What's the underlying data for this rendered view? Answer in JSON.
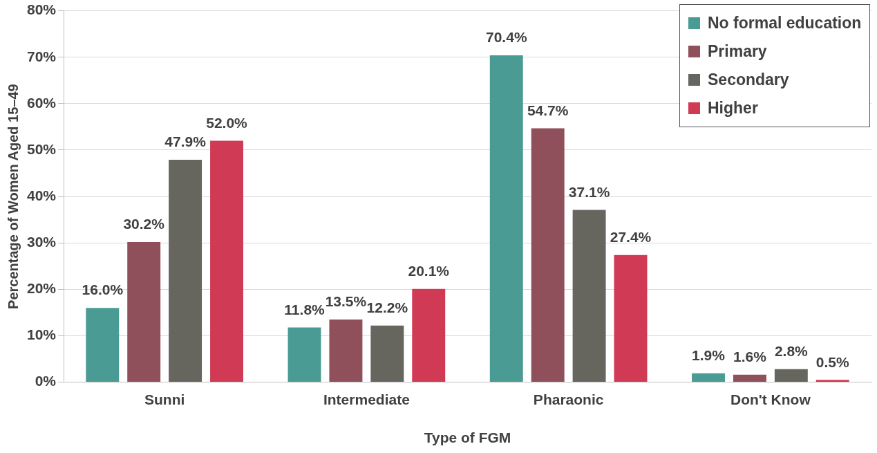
{
  "chart_data": {
    "type": "bar",
    "xlabel": "Type of FGM",
    "ylabel": "Percentage of Women Aged 15–49",
    "categories": [
      "Sunni",
      "Intermediate",
      "Pharaonic",
      "Don't Know"
    ],
    "series": [
      {
        "name": "No formal education",
        "color": "#4a9b94",
        "values": [
          16.0,
          11.8,
          70.4,
          1.9
        ],
        "value_labels": [
          "16.0%",
          "11.8%",
          "70.4%",
          "1.9%"
        ]
      },
      {
        "name": "Primary",
        "color": "#8f4f5b",
        "values": [
          30.2,
          13.5,
          54.7,
          1.6
        ],
        "value_labels": [
          "30.2%",
          "13.5%",
          "54.7%",
          "1.6%"
        ]
      },
      {
        "name": "Secondary",
        "color": "#66665f",
        "values": [
          47.9,
          12.2,
          37.1,
          2.8
        ],
        "value_labels": [
          "47.9%",
          "12.2%",
          "37.1%",
          "2.8%"
        ]
      },
      {
        "name": "Higher",
        "color": "#d03a55",
        "values": [
          52.0,
          20.1,
          27.4,
          0.5
        ],
        "value_labels": [
          "52.0%",
          "20.1%",
          "27.4%",
          "0.5%"
        ]
      }
    ],
    "ylim": [
      0,
      80
    ],
    "yticks": [
      {
        "value": 0,
        "label": "0%"
      },
      {
        "value": 10,
        "label": "10%"
      },
      {
        "value": 20,
        "label": "20%"
      },
      {
        "value": 30,
        "label": "30%"
      },
      {
        "value": 40,
        "label": "40%"
      },
      {
        "value": 50,
        "label": "50%"
      },
      {
        "value": 60,
        "label": "60%"
      },
      {
        "value": 70,
        "label": "70%"
      },
      {
        "value": 80,
        "label": "80%"
      }
    ],
    "grid": "y",
    "legend": "top right"
  }
}
